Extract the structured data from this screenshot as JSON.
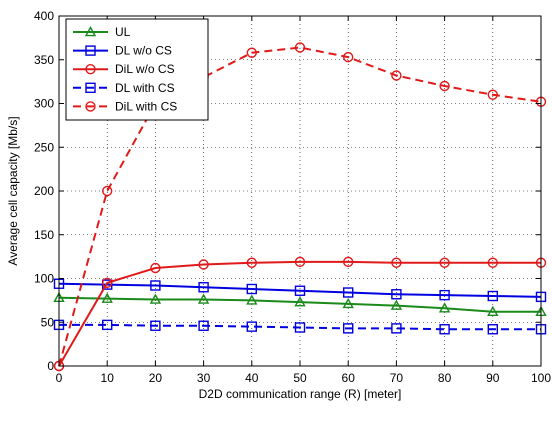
{
  "chart_data": {
    "type": "line",
    "title": "",
    "xlabel": "D2D communication range (R) [meter]",
    "ylabel": "Average cell capacity [Mb/s]",
    "xlim": [
      0,
      100
    ],
    "ylim": [
      0,
      400
    ],
    "xticks": [
      "0",
      "10",
      "20",
      "30",
      "40",
      "50",
      "60",
      "70",
      "80",
      "90",
      "100"
    ],
    "yticks": [
      "0",
      "50",
      "100",
      "150",
      "200",
      "250",
      "300",
      "350",
      "400"
    ],
    "grid": true,
    "legend_position": "top-left",
    "series": [
      {
        "name": "UL",
        "color": "#1a8a1a",
        "marker": "triangle",
        "dashed": false,
        "x": [
          0,
          10,
          20,
          30,
          40,
          50,
          60,
          70,
          80,
          90,
          100
        ],
        "values": [
          78,
          77,
          76,
          76,
          75,
          73,
          71,
          69,
          66,
          62,
          62
        ]
      },
      {
        "name": "DL w/o CS",
        "color": "#0000e0",
        "marker": "square",
        "dashed": false,
        "x": [
          0,
          10,
          20,
          30,
          40,
          50,
          60,
          70,
          80,
          90,
          100
        ],
        "values": [
          94,
          93,
          92,
          90,
          88,
          86,
          84,
          82,
          81,
          80,
          79
        ]
      },
      {
        "name": "DiL w/o CS",
        "color": "#e01a1a",
        "marker": "circle",
        "dashed": false,
        "x": [
          0,
          10,
          20,
          30,
          40,
          50,
          60,
          70,
          80,
          90,
          100
        ],
        "values": [
          0,
          95,
          112,
          116,
          118,
          119,
          119,
          118,
          118,
          118,
          118
        ]
      },
      {
        "name": "DL with CS",
        "color": "#0000e0",
        "marker": "square",
        "dashed": true,
        "x": [
          0,
          10,
          20,
          30,
          40,
          50,
          60,
          70,
          80,
          90,
          100
        ],
        "values": [
          47,
          47,
          46,
          46,
          45,
          44,
          43,
          43,
          42,
          42,
          42
        ]
      },
      {
        "name": "DiL with CS",
        "color": "#e01a1a",
        "marker": "circle",
        "dashed": true,
        "x": [
          0,
          10,
          20,
          30,
          40,
          50,
          60,
          70,
          80,
          90,
          100
        ],
        "values": [
          0,
          200,
          300,
          330,
          358,
          364,
          353,
          332,
          320,
          310,
          302
        ]
      }
    ]
  }
}
